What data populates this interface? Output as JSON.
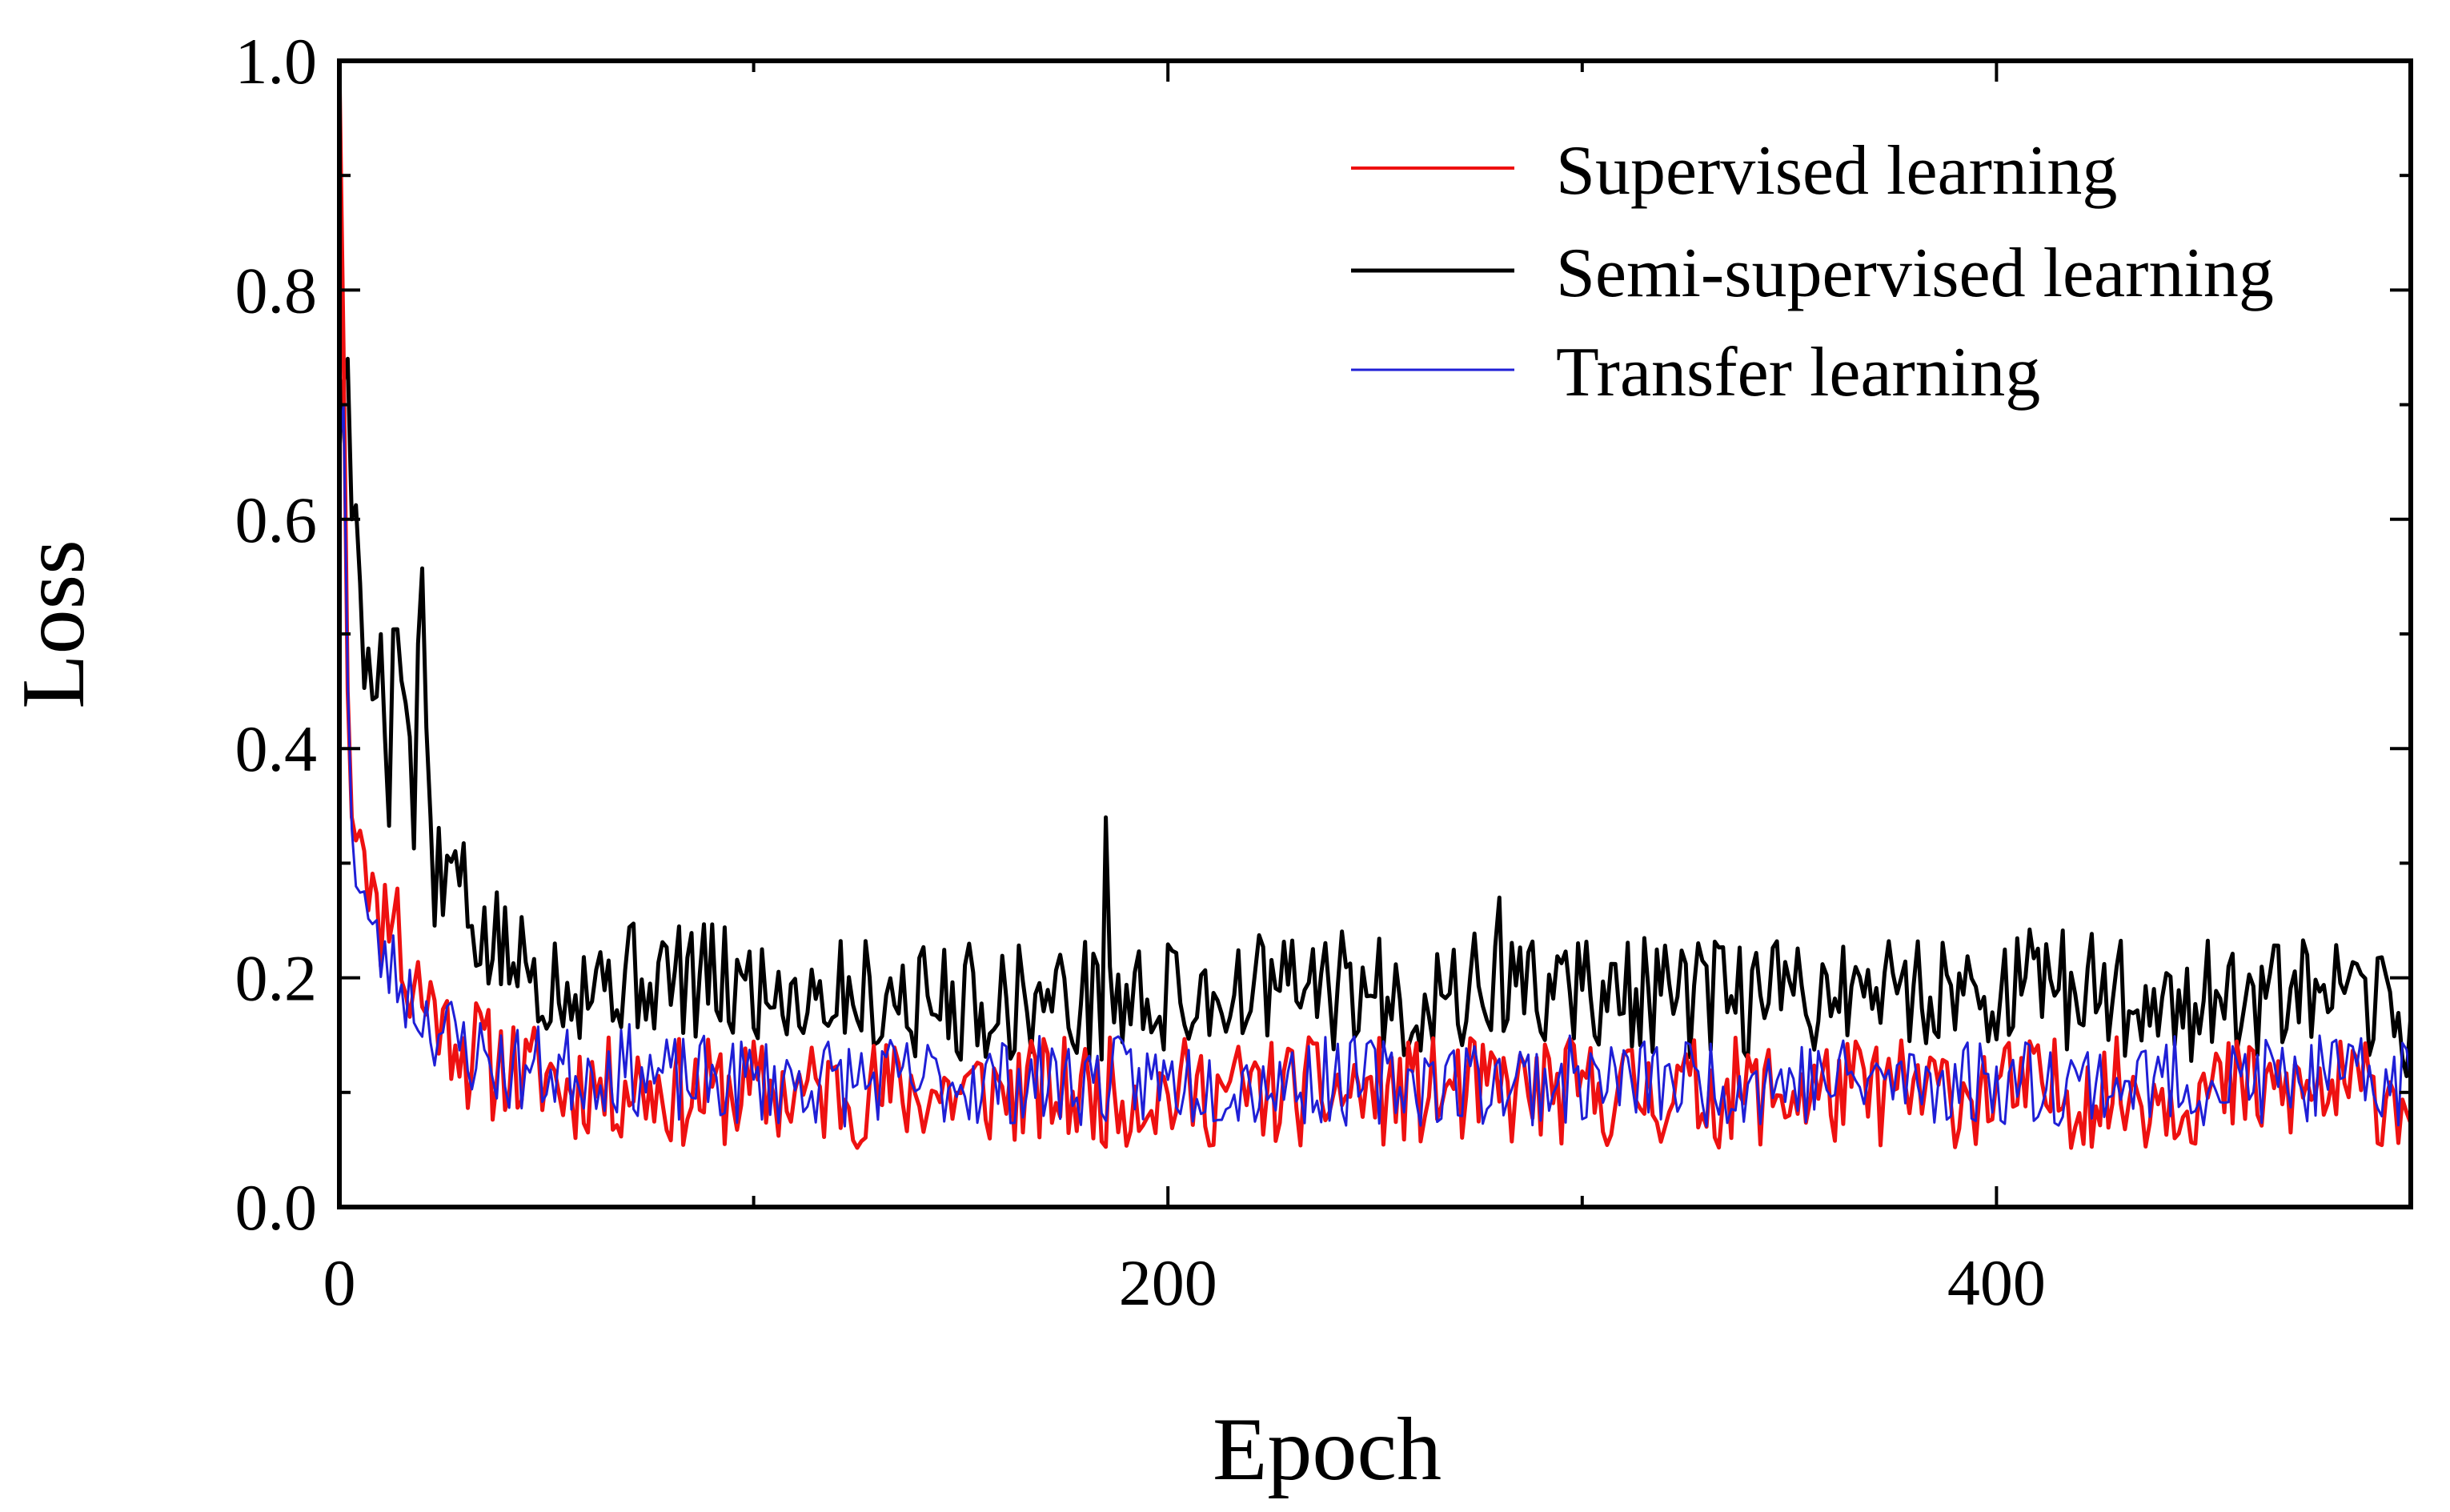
{
  "chart_data": {
    "type": "line",
    "title": "",
    "xlabel": "Epoch",
    "ylabel": "Loss",
    "xlim": [
      0,
      500
    ],
    "ylim": [
      0.0,
      1.0
    ],
    "xticks": [
      0,
      200,
      400
    ],
    "xtick_labels": [
      "0",
      "200",
      "400"
    ],
    "yticks": [
      0.0,
      0.2,
      0.4,
      0.6,
      0.8,
      1.0
    ],
    "ytick_labels": [
      "0.0",
      "0.2",
      "0.4",
      "0.6",
      "0.8",
      "1.0"
    ],
    "grid": false,
    "legend_position": "top-right",
    "series": [
      {
        "name": "Supervised learning",
        "color": "#ee1111",
        "points": [
          [
            0,
            1.0
          ],
          [
            1,
            0.75
          ],
          [
            2,
            0.45
          ],
          [
            3,
            0.34
          ],
          [
            5,
            0.35
          ],
          [
            7,
            0.3
          ],
          [
            9,
            0.24
          ],
          [
            11,
            0.26
          ],
          [
            13,
            0.28
          ],
          [
            15,
            0.22
          ],
          [
            17,
            0.18
          ],
          [
            19,
            0.2
          ],
          [
            21,
            0.17
          ],
          [
            23,
            0.19
          ],
          [
            25,
            0.15
          ],
          [
            28,
            0.16
          ],
          [
            31,
            0.13
          ],
          [
            34,
            0.14
          ],
          [
            37,
            0.12
          ],
          [
            40,
            0.13
          ],
          [
            45,
            0.11
          ],
          [
            50,
            0.12
          ],
          [
            55,
            0.1
          ],
          [
            60,
            0.11
          ],
          [
            65,
            0.1
          ],
          [
            70,
            0.11
          ],
          [
            80,
            0.1
          ],
          [
            90,
            0.1
          ],
          [
            100,
            0.1
          ],
          [
            120,
            0.1
          ],
          [
            140,
            0.1
          ],
          [
            160,
            0.1
          ],
          [
            180,
            0.1
          ],
          [
            200,
            0.1
          ],
          [
            220,
            0.1
          ],
          [
            240,
            0.1
          ],
          [
            260,
            0.1
          ],
          [
            280,
            0.1
          ],
          [
            300,
            0.1
          ],
          [
            320,
            0.1
          ],
          [
            340,
            0.1
          ],
          [
            360,
            0.1
          ],
          [
            380,
            0.1
          ],
          [
            400,
            0.1
          ],
          [
            420,
            0.1
          ],
          [
            440,
            0.1
          ],
          [
            460,
            0.1
          ],
          [
            480,
            0.1
          ],
          [
            500,
            0.1
          ]
        ],
        "noise": 0.022,
        "seed": 11
      },
      {
        "name": "Semi-supervised learning",
        "color": "#000000",
        "points": [
          [
            0,
            0.66
          ],
          [
            1,
            0.72
          ],
          [
            2,
            0.74
          ],
          [
            3,
            0.6
          ],
          [
            4,
            0.64
          ],
          [
            5,
            0.52
          ],
          [
            6,
            0.48
          ],
          [
            8,
            0.42
          ],
          [
            10,
            0.5
          ],
          [
            12,
            0.38
          ],
          [
            14,
            0.55
          ],
          [
            16,
            0.44
          ],
          [
            18,
            0.35
          ],
          [
            20,
            0.56
          ],
          [
            22,
            0.3
          ],
          [
            25,
            0.27
          ],
          [
            28,
            0.3
          ],
          [
            31,
            0.25
          ],
          [
            35,
            0.23
          ],
          [
            40,
            0.22
          ],
          [
            45,
            0.21
          ],
          [
            50,
            0.2
          ],
          [
            60,
            0.2
          ],
          [
            70,
            0.2
          ],
          [
            80,
            0.2
          ],
          [
            100,
            0.19
          ],
          [
            120,
            0.19
          ],
          [
            140,
            0.18
          ],
          [
            160,
            0.18
          ],
          [
            180,
            0.18
          ],
          [
            200,
            0.18
          ],
          [
            220,
            0.19
          ],
          [
            240,
            0.19
          ],
          [
            260,
            0.18
          ],
          [
            280,
            0.19
          ],
          [
            300,
            0.19
          ],
          [
            320,
            0.18
          ],
          [
            340,
            0.18
          ],
          [
            360,
            0.19
          ],
          [
            380,
            0.19
          ],
          [
            400,
            0.19
          ],
          [
            420,
            0.19
          ],
          [
            440,
            0.18
          ],
          [
            460,
            0.18
          ],
          [
            480,
            0.18
          ],
          [
            500,
            0.16
          ]
        ],
        "noise": 0.024,
        "seed": 5
      },
      {
        "name": "Transfer learning",
        "color": "#1f1fd6",
        "points": [
          [
            0,
            0.66
          ],
          [
            1,
            0.7
          ],
          [
            2,
            0.46
          ],
          [
            3,
            0.33
          ],
          [
            4,
            0.3
          ],
          [
            6,
            0.27
          ],
          [
            8,
            0.23
          ],
          [
            10,
            0.22
          ],
          [
            12,
            0.21
          ],
          [
            14,
            0.2
          ],
          [
            16,
            0.19
          ],
          [
            18,
            0.18
          ],
          [
            20,
            0.17
          ],
          [
            23,
            0.16
          ],
          [
            26,
            0.15
          ],
          [
            30,
            0.14
          ],
          [
            35,
            0.13
          ],
          [
            40,
            0.12
          ],
          [
            45,
            0.12
          ],
          [
            50,
            0.12
          ],
          [
            60,
            0.12
          ],
          [
            70,
            0.12
          ],
          [
            80,
            0.11
          ],
          [
            100,
            0.11
          ],
          [
            120,
            0.11
          ],
          [
            140,
            0.11
          ],
          [
            160,
            0.11
          ],
          [
            180,
            0.11
          ],
          [
            200,
            0.11
          ],
          [
            220,
            0.11
          ],
          [
            240,
            0.11
          ],
          [
            260,
            0.11
          ],
          [
            280,
            0.11
          ],
          [
            300,
            0.11
          ],
          [
            320,
            0.11
          ],
          [
            340,
            0.11
          ],
          [
            360,
            0.11
          ],
          [
            380,
            0.11
          ],
          [
            400,
            0.11
          ],
          [
            420,
            0.11
          ],
          [
            440,
            0.11
          ],
          [
            460,
            0.11
          ],
          [
            480,
            0.11
          ],
          [
            500,
            0.11
          ]
        ],
        "noise": 0.018,
        "seed": 23
      }
    ]
  }
}
